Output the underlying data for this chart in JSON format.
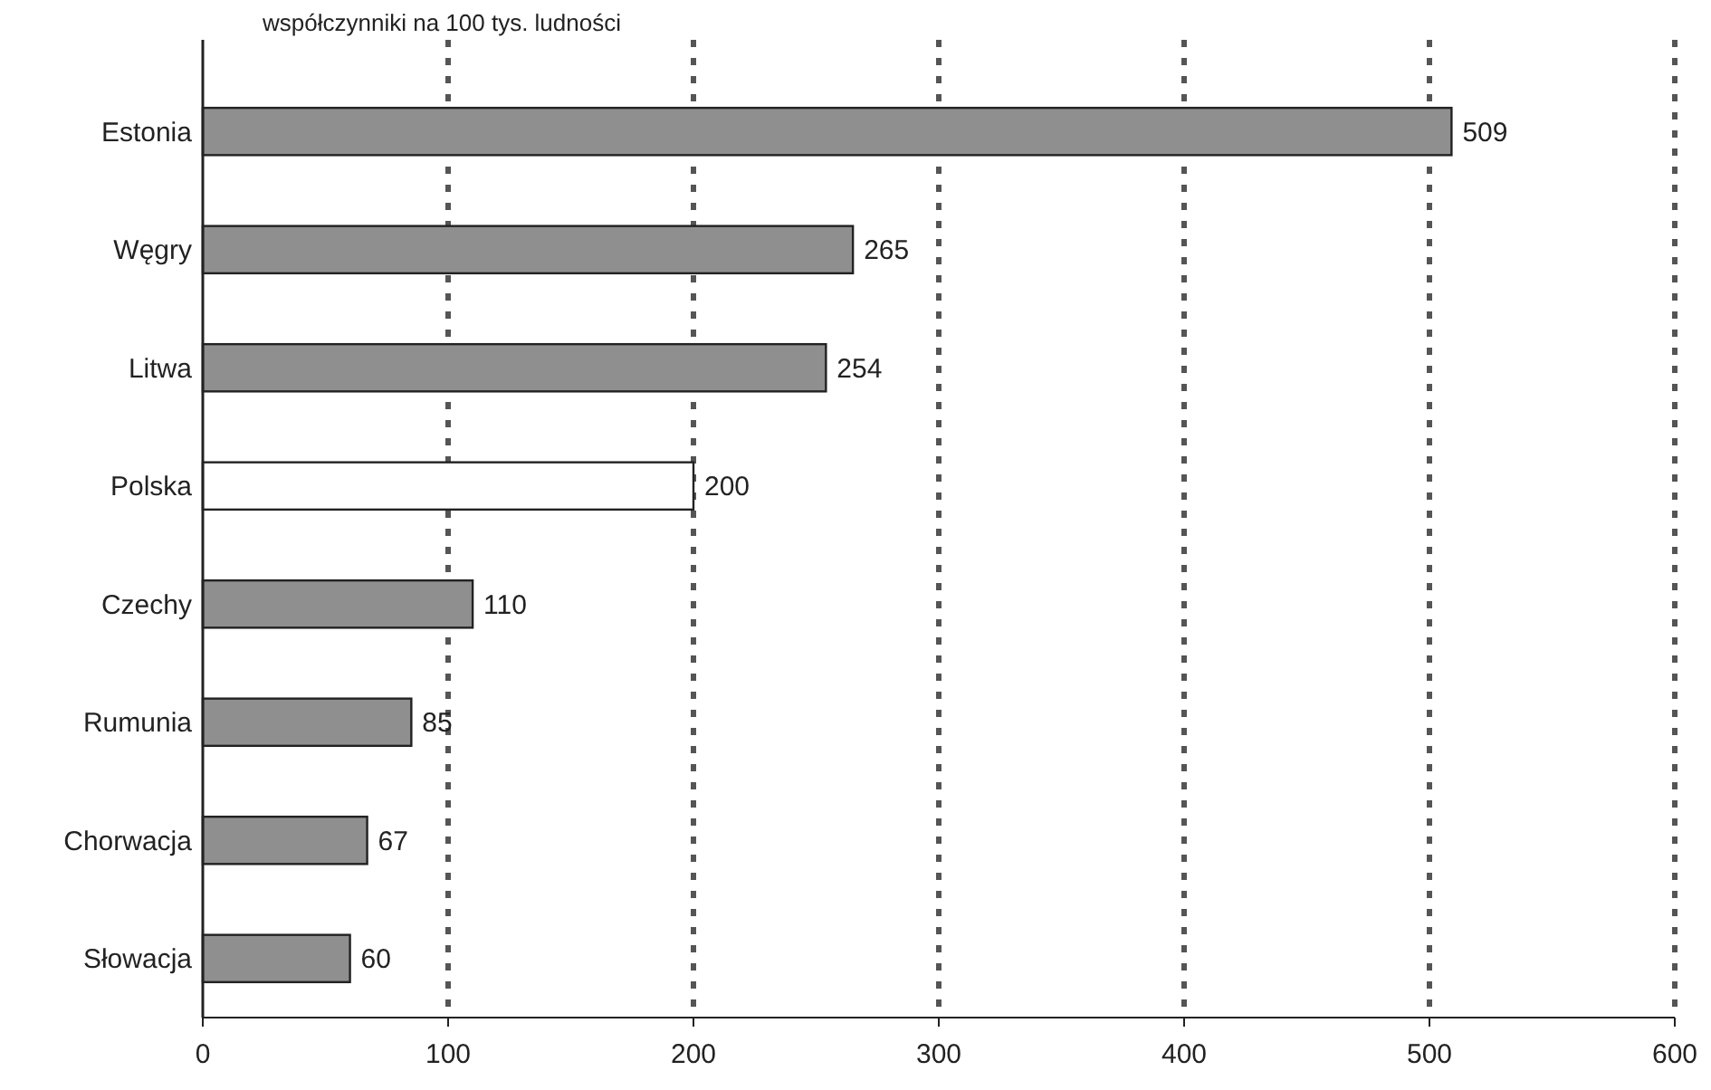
{
  "chart_data": {
    "type": "bar",
    "orientation": "horizontal",
    "title": "współczynniki na 100 tys. ludności",
    "categories": [
      "Estonia",
      "Węgry",
      "Litwa",
      "Polska",
      "Czechy",
      "Rumunia",
      "Chorwacja",
      "Słowacja"
    ],
    "values": [
      509,
      265,
      254,
      200,
      110,
      85,
      67,
      60
    ],
    "colors": [
      "#8f8f8f",
      "#8f8f8f",
      "#8f8f8f",
      "#ffffff",
      "#8f8f8f",
      "#8f8f8f",
      "#8f8f8f",
      "#8f8f8f"
    ],
    "xlim": [
      0,
      600
    ],
    "xticks": [
      0,
      100,
      200,
      300,
      400,
      500,
      600
    ],
    "grid": "x",
    "data_labels": true
  }
}
